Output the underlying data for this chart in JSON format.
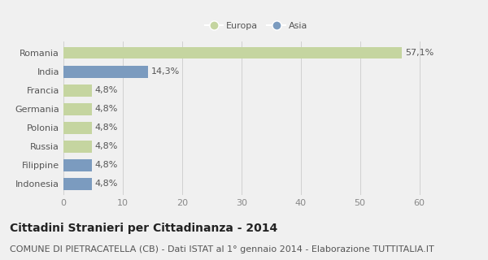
{
  "categories": [
    "Romania",
    "India",
    "Francia",
    "Germania",
    "Polonia",
    "Russia",
    "Filippine",
    "Indonesia"
  ],
  "values": [
    57.1,
    14.3,
    4.8,
    4.8,
    4.8,
    4.8,
    4.8,
    4.8
  ],
  "labels": [
    "57,1%",
    "14,3%",
    "4,8%",
    "4,8%",
    "4,8%",
    "4,8%",
    "4,8%",
    "4,8%"
  ],
  "colors": [
    "#c5d5a0",
    "#7b9bbf",
    "#c5d5a0",
    "#c5d5a0",
    "#c5d5a0",
    "#c5d5a0",
    "#7b9bbf",
    "#7b9bbf"
  ],
  "legend": [
    {
      "label": "Europa",
      "color": "#c5d5a0"
    },
    {
      "label": "Asia",
      "color": "#7b9bbf"
    }
  ],
  "xlim": [
    0,
    65
  ],
  "xticks": [
    0,
    10,
    20,
    30,
    40,
    50,
    60
  ],
  "title": "Cittadini Stranieri per Cittadinanza - 2014",
  "subtitle": "COMUNE DI PIETRACATELLA (CB) - Dati ISTAT al 1° gennaio 2014 - Elaborazione TUTTITALIA.IT",
  "background_color": "#f0f0f0",
  "plot_bg_color": "#f0f0f0",
  "bar_height": 0.65,
  "title_fontsize": 10,
  "subtitle_fontsize": 8,
  "label_fontsize": 8,
  "tick_fontsize": 8
}
